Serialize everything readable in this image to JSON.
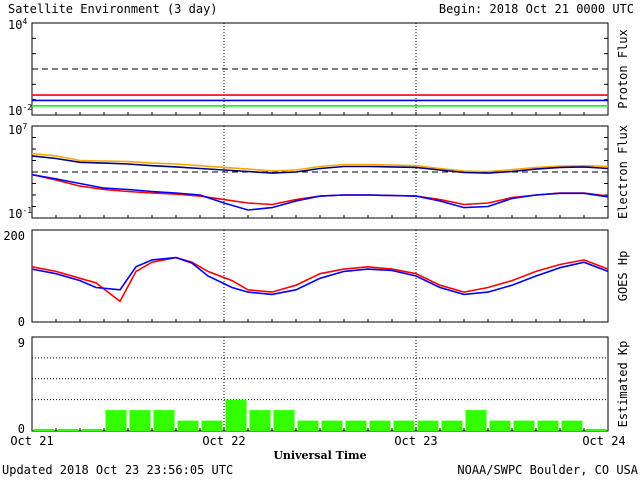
{
  "header": {
    "title": "Satellite Environment (3 day)",
    "begin": "Begin:  2018 Oct 21 0000 UTC"
  },
  "footer": {
    "updated": "Updated 2018 Oct 23 23:56:05 UTC",
    "credit": "NOAA/SWPC Boulder, CO USA",
    "xlabel": "Universal Time"
  },
  "colors": {
    "red": "#ff0000",
    "blue": "#0000ff",
    "green": "#00ff00",
    "orange": "#ffa500",
    "navy": "#000080",
    "kp_bar": "#33ff00"
  },
  "chart_data": [
    {
      "type": "line",
      "name": "proton_flux",
      "ylabel": "Proton Flux",
      "yscale": "log",
      "ylim": [
        0.01,
        10000
      ],
      "ytick_labels": [
        "10^4",
        "10^-2"
      ],
      "threshold": 10,
      "xlim": [
        0,
        72
      ],
      "x_tick_labels": [
        "Oct 21",
        "Oct 22",
        "Oct 23",
        "Oct 24"
      ],
      "x": [
        0,
        6,
        12,
        18,
        24,
        30,
        36,
        42,
        48,
        54,
        60,
        66,
        72
      ],
      "series": [
        {
          "color": "red",
          "values": [
            0.2,
            0.2,
            0.2,
            0.2,
            0.2,
            0.2,
            0.2,
            0.2,
            0.2,
            0.2,
            0.2,
            0.2,
            0.2
          ]
        },
        {
          "color": "blue",
          "values": [
            0.09,
            0.09,
            0.09,
            0.09,
            0.09,
            0.09,
            0.09,
            0.09,
            0.09,
            0.09,
            0.09,
            0.09,
            0.09
          ]
        },
        {
          "color": "green",
          "values": [
            0.04,
            0.04,
            0.04,
            0.04,
            0.04,
            0.04,
            0.04,
            0.04,
            0.04,
            0.04,
            0.04,
            0.04,
            0.04
          ]
        }
      ]
    },
    {
      "type": "line",
      "name": "electron_flux",
      "ylabel": "Electron Flux",
      "yscale": "log",
      "ylim": [
        0.1,
        10000000
      ],
      "ytick_labels": [
        "10^7",
        "10^-1"
      ],
      "threshold": 1000,
      "xlim": [
        0,
        72
      ],
      "x": [
        0,
        3,
        6,
        9,
        12,
        15,
        18,
        21,
        24,
        27,
        30,
        33,
        36,
        39,
        42,
        45,
        48,
        51,
        54,
        57,
        60,
        63,
        66,
        69,
        72
      ],
      "series": [
        {
          "color": "orange",
          "values": [
            40000,
            25000,
            10000,
            9000,
            8000,
            6000,
            5000,
            3500,
            2500,
            1800,
            1200,
            1500,
            3000,
            4500,
            4500,
            4000,
            3500,
            2000,
            1200,
            1100,
            1600,
            2500,
            3200,
            3500,
            3000
          ]
        },
        {
          "color": "navy",
          "values": [
            25000,
            15000,
            7000,
            6000,
            5000,
            3500,
            2800,
            2000,
            1500,
            1100,
            800,
            1000,
            2000,
            3000,
            3000,
            2800,
            2500,
            1500,
            900,
            800,
            1100,
            1800,
            2500,
            2800,
            2000
          ]
        },
        {
          "color": "red",
          "values": [
            600,
            200,
            60,
            30,
            20,
            15,
            12,
            8,
            4,
            2,
            1.5,
            4,
            8,
            10,
            10,
            9,
            8,
            4,
            1.5,
            2,
            6,
            10,
            15,
            15,
            8
          ]
        },
        {
          "color": "blue",
          "values": [
            600,
            250,
            100,
            40,
            30,
            20,
            15,
            10,
            2,
            0.5,
            0.8,
            3,
            8,
            10,
            10,
            9,
            8,
            3,
            0.8,
            1,
            5,
            10,
            14,
            14,
            7
          ]
        }
      ]
    },
    {
      "type": "line",
      "name": "goes_hp",
      "ylabel": "GOES Hp",
      "ylim": [
        0,
        200
      ],
      "ytick_labels": [
        "200",
        "0"
      ],
      "xlim": [
        0,
        72
      ],
      "x": [
        0,
        3,
        6,
        8,
        11,
        13,
        15,
        18,
        20,
        22,
        25,
        27,
        30,
        33,
        36,
        39,
        42,
        45,
        48,
        51,
        54,
        57,
        60,
        63,
        66,
        69,
        72
      ],
      "series": [
        {
          "color": "red",
          "values": [
            120,
            110,
            95,
            85,
            45,
            110,
            130,
            140,
            130,
            110,
            90,
            70,
            65,
            80,
            105,
            115,
            120,
            115,
            105,
            80,
            65,
            75,
            90,
            110,
            125,
            135,
            115
          ]
        },
        {
          "color": "blue",
          "values": [
            115,
            105,
            90,
            75,
            70,
            120,
            135,
            140,
            128,
            100,
            75,
            65,
            60,
            70,
            95,
            110,
            115,
            112,
            100,
            75,
            60,
            65,
            80,
            100,
            118,
            130,
            110
          ]
        }
      ]
    },
    {
      "type": "bar",
      "name": "estimated_kp",
      "ylabel": "Estimated Kp",
      "ylim": [
        0,
        9
      ],
      "ytick_labels": [
        "9",
        "0"
      ],
      "xlim": [
        0,
        72
      ],
      "bar_width_hours": 3,
      "values": [
        0.2,
        0.2,
        0.2,
        2,
        2,
        2,
        1,
        1,
        3,
        2,
        2,
        1,
        1,
        1,
        1,
        1,
        1,
        1,
        2,
        1,
        1,
        1,
        1,
        0.2
      ]
    }
  ]
}
